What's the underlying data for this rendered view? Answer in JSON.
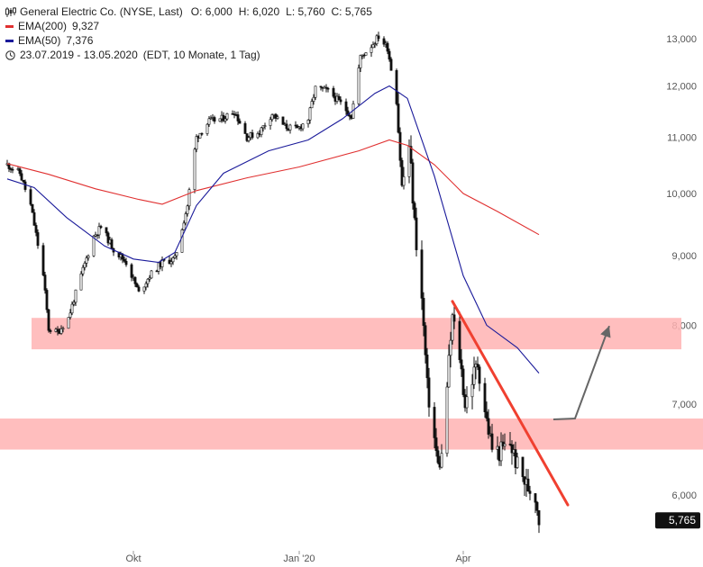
{
  "legend": {
    "instrument": "General Electric Co. (NYSE, Last)",
    "open": "O: 6,000",
    "high": "H: 6,020",
    "low": "L: 5,760",
    "close": "C: 5,765",
    "ema200_label": "EMA(200)",
    "ema200_value": "9,327",
    "ema50_label": "EMA(50)",
    "ema50_value": "7,376",
    "range": "23.07.2019 - 13.05.2020",
    "range_info": "(EDT, 10 Monate, 1 Tag)",
    "icons": [
      "candlestick-icon",
      "clock-icon"
    ]
  },
  "colors": {
    "ema200": "#e03030",
    "ema50": "#1a1a9a",
    "zone": "#ffb3b3",
    "trendline": "#f04030",
    "arrow": "#666666",
    "badge": "#111111"
  },
  "chart_data": {
    "type": "candlestick",
    "x_range": [
      "2019-07-23",
      "2020-05-13"
    ],
    "ylim": [
      5500,
      13500
    ],
    "y_scale": "log",
    "y_ticks": [
      6000,
      7000,
      8000,
      9000,
      10000,
      11000,
      12000,
      13000
    ],
    "y_tick_labels": [
      "6,000",
      "7,000",
      "8,000",
      "9,000",
      "10,000",
      "11,000",
      "12,000",
      "13,000"
    ],
    "x_ticks": [
      {
        "date": "2019-10-01",
        "label": "Okt"
      },
      {
        "date": "2020-01-01",
        "label": "Jan '20"
      },
      {
        "date": "2020-04-01",
        "label": "Apr"
      }
    ],
    "last_value": 5765,
    "last_label": "5,765",
    "price_path": [
      [
        "2019-07-23",
        10500
      ],
      [
        "2019-07-30",
        10350
      ],
      [
        "2019-08-05",
        9800
      ],
      [
        "2019-08-12",
        8700
      ],
      [
        "2019-08-15",
        7950
      ],
      [
        "2019-08-20",
        7900
      ],
      [
        "2019-08-26",
        8100
      ],
      [
        "2019-09-02",
        8700
      ],
      [
        "2019-09-09",
        9300
      ],
      [
        "2019-09-13",
        9450
      ],
      [
        "2019-09-20",
        9100
      ],
      [
        "2019-09-27",
        8900
      ],
      [
        "2019-10-04",
        8450
      ],
      [
        "2019-10-10",
        8700
      ],
      [
        "2019-10-17",
        8900
      ],
      [
        "2019-10-24",
        8950
      ],
      [
        "2019-10-31",
        9800
      ],
      [
        "2019-11-05",
        11000
      ],
      [
        "2019-11-12",
        11300
      ],
      [
        "2019-11-19",
        11350
      ],
      [
        "2019-11-26",
        11500
      ],
      [
        "2019-12-03",
        11000
      ],
      [
        "2019-12-10",
        11100
      ],
      [
        "2019-12-17",
        11450
      ],
      [
        "2019-12-24",
        11200
      ],
      [
        "2019-12-31",
        11150
      ],
      [
        "2020-01-06",
        11350
      ],
      [
        "2020-01-10",
        11950
      ],
      [
        "2020-01-17",
        11900
      ],
      [
        "2020-01-24",
        11650
      ],
      [
        "2020-01-30",
        11400
      ],
      [
        "2020-02-04",
        12600
      ],
      [
        "2020-02-10",
        12850
      ],
      [
        "2020-02-14",
        13050
      ],
      [
        "2020-02-19",
        12800
      ],
      [
        "2020-02-24",
        11700
      ],
      [
        "2020-02-27",
        10100
      ],
      [
        "2020-03-02",
        10850
      ],
      [
        "2020-03-05",
        9500
      ],
      [
        "2020-03-09",
        8350
      ],
      [
        "2020-03-12",
        7200
      ],
      [
        "2020-03-16",
        6600
      ],
      [
        "2020-03-18",
        6300
      ],
      [
        "2020-03-20",
        6400
      ],
      [
        "2020-03-24",
        7500
      ],
      [
        "2020-03-26",
        8100
      ],
      [
        "2020-03-30",
        7600
      ],
      [
        "2020-04-02",
        7000
      ],
      [
        "2020-04-06",
        7300
      ],
      [
        "2020-04-09",
        7500
      ],
      [
        "2020-04-14",
        6800
      ],
      [
        "2020-04-17",
        6500
      ],
      [
        "2020-04-21",
        6450
      ],
      [
        "2020-04-27",
        6550
      ],
      [
        "2020-05-01",
        6300
      ],
      [
        "2020-05-06",
        6100
      ],
      [
        "2020-05-11",
        6000
      ],
      [
        "2020-05-13",
        5765
      ]
    ],
    "ema200": [
      [
        "2019-07-23",
        10520
      ],
      [
        "2019-08-15",
        10330
      ],
      [
        "2019-09-10",
        10080
      ],
      [
        "2019-10-04",
        9900
      ],
      [
        "2019-10-17",
        9820
      ],
      [
        "2019-11-05",
        10050
      ],
      [
        "2019-12-03",
        10270
      ],
      [
        "2020-01-01",
        10460
      ],
      [
        "2020-02-03",
        10750
      ],
      [
        "2020-02-20",
        10950
      ],
      [
        "2020-03-01",
        10850
      ],
      [
        "2020-03-16",
        10500
      ],
      [
        "2020-04-01",
        10000
      ],
      [
        "2020-04-20",
        9700
      ],
      [
        "2020-05-13",
        9327
      ]
    ],
    "ema50": [
      [
        "2019-07-23",
        10250
      ],
      [
        "2019-08-07",
        10100
      ],
      [
        "2019-08-25",
        9600
      ],
      [
        "2019-09-15",
        9150
      ],
      [
        "2019-10-01",
        8950
      ],
      [
        "2019-10-15",
        8900
      ],
      [
        "2019-10-24",
        9050
      ],
      [
        "2019-11-05",
        9800
      ],
      [
        "2019-11-20",
        10350
      ],
      [
        "2019-12-15",
        10750
      ],
      [
        "2020-01-06",
        10950
      ],
      [
        "2020-01-25",
        11350
      ],
      [
        "2020-02-12",
        11850
      ],
      [
        "2020-02-20",
        12000
      ],
      [
        "2020-03-01",
        11750
      ],
      [
        "2020-03-16",
        10300
      ],
      [
        "2020-04-01",
        8700
      ],
      [
        "2020-04-14",
        8000
      ],
      [
        "2020-05-01",
        7700
      ],
      [
        "2020-05-13",
        7376
      ]
    ],
    "zones": [
      {
        "from": 7680,
        "to": 8100
      },
      {
        "from": 6480,
        "to": 6830
      }
    ],
    "trendline": {
      "start": [
        "2020-03-26",
        8330
      ],
      "end": [
        "2020-05-29",
        5900
      ]
    },
    "projection_arrow": [
      [
        "2020-05-21",
        6820
      ],
      [
        "2020-06-02",
        6830
      ],
      [
        "2020-06-21",
        7990
      ]
    ]
  }
}
